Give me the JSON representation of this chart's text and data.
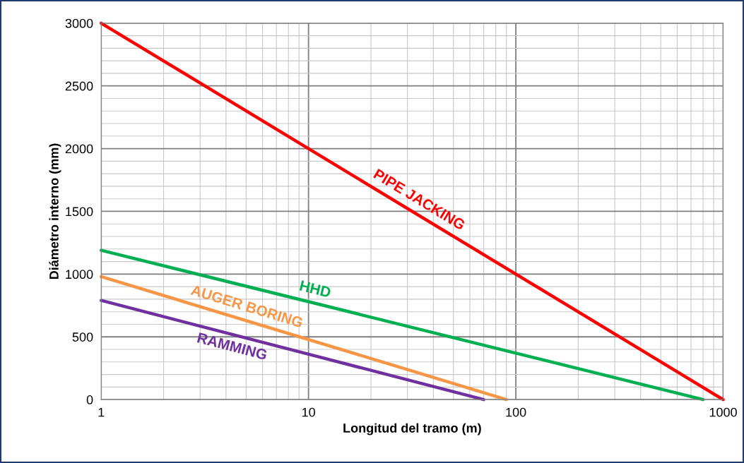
{
  "chart_data": {
    "type": "line",
    "xlabel": "Longitud del tramo (m)",
    "ylabel": "Diámetro interno (mm)",
    "log": "x",
    "xlim": [
      1,
      1000
    ],
    "xticks": [
      1,
      10,
      100,
      1000
    ],
    "ylim": [
      0,
      3000
    ],
    "yticks": [
      0,
      500,
      1000,
      1500,
      2000,
      2500,
      3000
    ],
    "grid": true,
    "marker": "none",
    "line_style": "solid",
    "series": [
      {
        "name": "PIPE JACKING",
        "color": "#ff0000",
        "x": [
          1,
          1000
        ],
        "values": [
          3000,
          0
        ]
      },
      {
        "name": "HHD",
        "color": "#00b050",
        "x": [
          1,
          800
        ],
        "values": [
          1190,
          0
        ]
      },
      {
        "name": "AUGER BORING",
        "color": "#f79646",
        "x": [
          1,
          90
        ],
        "values": [
          980,
          0
        ]
      },
      {
        "name": "RAMMING",
        "color": "#7030a0",
        "x": [
          1,
          70
        ],
        "values": [
          790,
          0
        ]
      }
    ]
  }
}
